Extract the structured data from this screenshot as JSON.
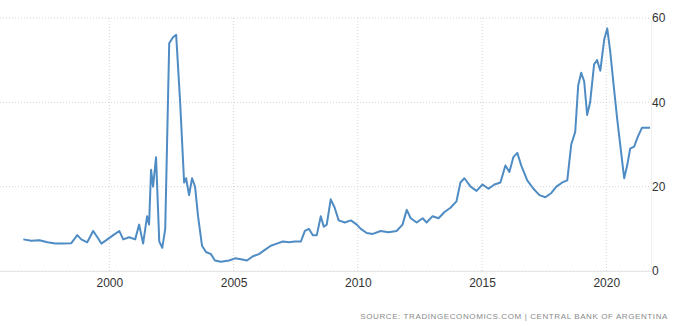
{
  "chart_data": {
    "type": "line",
    "source": "SOURCE: TRADINGECONOMICS.COM | CENTRAL BANK OF ARGENTINA",
    "color": "#4f8cc4",
    "grid": true,
    "xlim": [
      1995.6,
      2021.8
    ],
    "xticks": [
      2000,
      2005,
      2010,
      2015,
      2020
    ],
    "ylim": [
      0,
      60
    ],
    "yticks": [
      0,
      20,
      40,
      60
    ],
    "x": [
      1996.54,
      1996.86,
      1997.19,
      1997.51,
      1997.83,
      1998.15,
      1998.47,
      1998.71,
      1998.87,
      1999.11,
      1999.35,
      1999.52,
      1999.68,
      1999.92,
      2000.16,
      2000.4,
      2000.56,
      2000.8,
      2001.04,
      2001.2,
      2001.36,
      2001.52,
      2001.6,
      2001.68,
      2001.76,
      2001.88,
      2002.01,
      2002.13,
      2002.25,
      2002.41,
      2002.57,
      2002.69,
      2002.85,
      2003.01,
      2003.09,
      2003.21,
      2003.33,
      2003.45,
      2003.57,
      2003.73,
      2003.89,
      2004.09,
      2004.25,
      2004.49,
      2004.82,
      2005.06,
      2005.3,
      2005.54,
      2005.78,
      2006.02,
      2006.26,
      2006.5,
      2006.74,
      2006.99,
      2007.23,
      2007.47,
      2007.71,
      2007.87,
      2008.03,
      2008.19,
      2008.35,
      2008.51,
      2008.63,
      2008.75,
      2008.91,
      2009.07,
      2009.23,
      2009.48,
      2009.72,
      2009.96,
      2010.12,
      2010.36,
      2010.6,
      2010.92,
      2011.24,
      2011.56,
      2011.8,
      2011.97,
      2012.13,
      2012.37,
      2012.61,
      2012.77,
      2013.01,
      2013.25,
      2013.49,
      2013.73,
      2013.97,
      2014.13,
      2014.29,
      2014.54,
      2014.78,
      2015.02,
      2015.26,
      2015.5,
      2015.74,
      2015.94,
      2016.1,
      2016.26,
      2016.42,
      2016.58,
      2016.82,
      2017.07,
      2017.31,
      2017.55,
      2017.79,
      2017.99,
      2018.23,
      2018.43,
      2018.59,
      2018.75,
      2018.87,
      2018.99,
      2019.11,
      2019.23,
      2019.35,
      2019.51,
      2019.63,
      2019.76,
      2019.92,
      2020.04,
      2020.16,
      2020.28,
      2020.44,
      2020.6,
      2020.72,
      2020.84,
      2020.96,
      2021.12,
      2021.28,
      2021.44,
      2021.6,
      2021.76
    ],
    "values": [
      7.5,
      7.2,
      7.3,
      6.8,
      6.5,
      6.5,
      6.6,
      8.5,
      7.5,
      6.8,
      9.5,
      8,
      6.5,
      7.5,
      8.5,
      9.5,
      7.5,
      8,
      7.5,
      11,
      6.5,
      13,
      11,
      24,
      20,
      27,
      7,
      5.5,
      10,
      54,
      55.5,
      56,
      40,
      21,
      22,
      18,
      22,
      20,
      13,
      6,
      4.5,
      4,
      2.5,
      2.2,
      2.5,
      3,
      2.8,
      2.5,
      3.5,
      4,
      5,
      6,
      6.5,
      7,
      6.8,
      7,
      7,
      9.5,
      10,
      8.5,
      8.5,
      13,
      10.5,
      11,
      17,
      15,
      12,
      11.5,
      12,
      11,
      10,
      9,
      8.8,
      9.5,
      9.2,
      9.5,
      11,
      14.5,
      12.5,
      11.5,
      12.5,
      11.5,
      13,
      12.5,
      14,
      15,
      16.5,
      21,
      22,
      20,
      19,
      20.5,
      19.5,
      20.5,
      21,
      25,
      23.5,
      27,
      28,
      25,
      21.5,
      19.5,
      18,
      17.5,
      18.5,
      20,
      21,
      21.5,
      30,
      33,
      44,
      47,
      45,
      37,
      40,
      49,
      50,
      47.5,
      55,
      57.5,
      52,
      45,
      36,
      28,
      22,
      25,
      29,
      29.5,
      32,
      34,
      34,
      34
    ]
  }
}
